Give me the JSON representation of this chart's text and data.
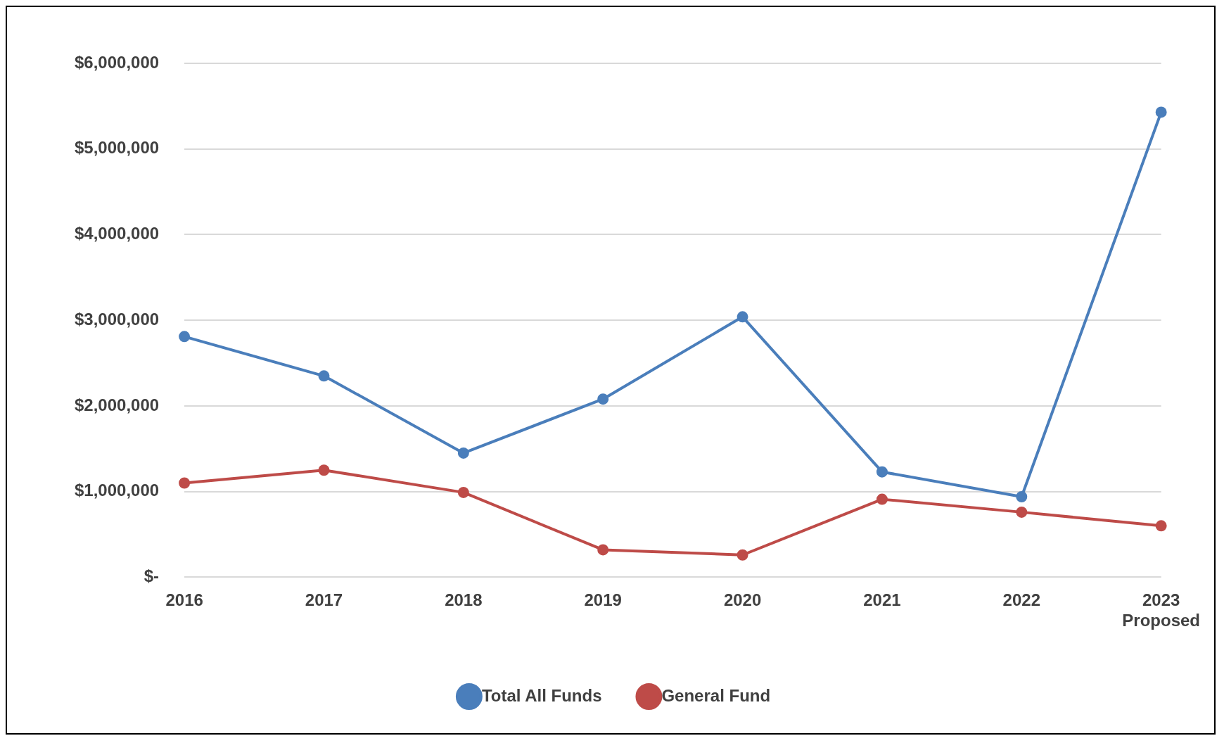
{
  "chart_data": {
    "type": "line",
    "categories": [
      "2016",
      "2017",
      "2018",
      "2019",
      "2020",
      "2021",
      "2022",
      "2023\nProposed"
    ],
    "series": [
      {
        "name": "Total All Funds",
        "color": "#4a7ebb",
        "values": [
          2810000,
          2350000,
          1450000,
          2080000,
          3040000,
          1230000,
          940000,
          5430000
        ]
      },
      {
        "name": "General Fund",
        "color": "#be4b48",
        "values": [
          1100000,
          1250000,
          990000,
          320000,
          260000,
          910000,
          760000,
          600000
        ]
      }
    ],
    "ylim": [
      0,
      6000000
    ],
    "yticks": [
      {
        "value": 0,
        "label": "$-"
      },
      {
        "value": 1000000,
        "label": "$1,000,000"
      },
      {
        "value": 2000000,
        "label": "$2,000,000"
      },
      {
        "value": 3000000,
        "label": "$3,000,000"
      },
      {
        "value": 4000000,
        "label": "$4,000,000"
      },
      {
        "value": 5000000,
        "label": "$5,000,000"
      },
      {
        "value": 6000000,
        "label": "$6,000,000"
      }
    ],
    "grid": "y",
    "legend": "bottom",
    "marker": "circle",
    "line_style": "solid"
  }
}
